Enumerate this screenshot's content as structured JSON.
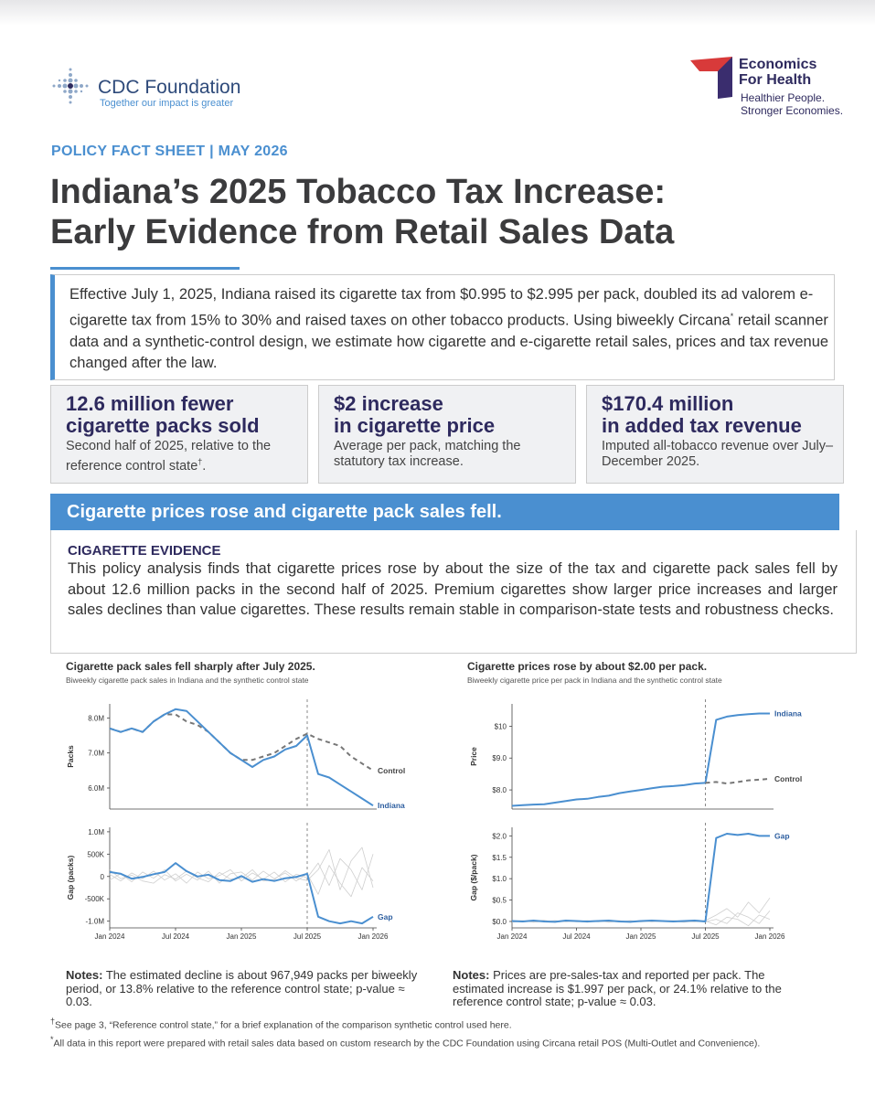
{
  "header": {
    "org_left": "CDC Foundation",
    "tagline_left": "Together our impact is greater",
    "org_right": [
      "Economics",
      "For Health"
    ],
    "tagline_right": [
      "Healthier People.",
      "Stronger Economies."
    ]
  },
  "kicker": "POLICY FACT SHEET | MAY 2026",
  "title": [
    "Indiana’s 2025 Tobacco Tax Increase:",
    "Early Evidence from Retail Sales Data"
  ],
  "intro": {
    "text_1": "Effective July 1, 2025, Indiana raised its cigarette tax from $0.995 to $2.995 per pack, doubled its ad valorem e-cigarette tax from 15% to 30% and raised taxes on other tobacco products. Using biweekly Circana",
    "mark": "*",
    "text_2": " retail scanner data and a synthetic-control design, we estimate how cigarette and e-cigarette retail sales, prices and tax revenue changed after the law."
  },
  "stats": [
    {
      "headline": [
        "12.6 million fewer",
        "cigarette packs sold"
      ],
      "detail": "Second half of 2025, relative to the reference control state",
      "mark": "†",
      "end": "."
    },
    {
      "headline": [
        "$2 increase",
        "in cigarette price"
      ],
      "detail": "Average per pack, matching the statutory tax increase.",
      "mark": null,
      "end": null
    },
    {
      "headline": [
        "$170.4 million",
        "in added tax revenue"
      ],
      "detail": "Imputed all-tobacco revenue over July–December 2025.",
      "mark": null,
      "end": null
    }
  ],
  "section": {
    "banner": "Cigarette prices rose and cigarette pack sales fell.",
    "heading": "CIGARETTE EVIDENCE",
    "body": "This policy analysis finds that cigarette prices rose by about the size of the tax and cigarette pack sales fell by about 12.6 million packs in the second half of 2025. Premium cigarettes show larger price increases and larger sales declines than value cigarettes. These results remain stable in comparison-state tests and robustness checks."
  },
  "chart_data": [
    {
      "type": "line",
      "title": "Cigarette pack sales fell sharply after July 2025.",
      "subtitle": "Biweekly cigarette pack sales in Indiana and the synthetic control state",
      "categories": [
        "Jan 2024",
        null,
        null,
        null,
        null,
        null,
        "Jul 2024",
        null,
        null,
        null,
        null,
        null,
        "Jan 2025",
        null,
        null,
        null,
        null,
        null,
        "Jul 2025",
        null,
        null,
        null,
        null,
        null,
        "Jan 2026"
      ],
      "vline": "Jul 2025",
      "grid": false,
      "panels": [
        {
          "ylabel": "Packs",
          "ylim": [
            5400000,
            8400000
          ],
          "yticks": [
            {
              "value": 6000000,
              "label": "6.0M"
            },
            {
              "value": 7000000,
              "label": "7.0M"
            },
            {
              "value": 8000000,
              "label": "8.0M"
            }
          ],
          "series": [
            {
              "name": "Control",
              "color": "#777777",
              "dash": true,
              "values": [
                7700000,
                7600000,
                7700000,
                7600000,
                7900000,
                8100000,
                8100000,
                7900000,
                7800000,
                7600000,
                7300000,
                7000000,
                6800000,
                6800000,
                6900000,
                7000000,
                7200000,
                7400000,
                7550000,
                7400000,
                7300000,
                7200000,
                6900000,
                6700000,
                6500000
              ]
            },
            {
              "name": "Indiana",
              "color": "#4a8fd0",
              "dash": false,
              "values": [
                7700000,
                7600000,
                7700000,
                7600000,
                7900000,
                8100000,
                8250000,
                8200000,
                7900000,
                7600000,
                7300000,
                7000000,
                6800000,
                6600000,
                6800000,
                6900000,
                7100000,
                7200000,
                7500000,
                6400000,
                6300000,
                6100000,
                5900000,
                5700000,
                5500000
              ]
            }
          ]
        },
        {
          "ylabel": "Gap (packs)",
          "ylim": [
            -1150000,
            1100000
          ],
          "yticks": [
            {
              "value": -1000000,
              "label": "-1.0M"
            },
            {
              "value": -500000,
              "label": "-500K"
            },
            0,
            {
              "value": 500000,
              "label": "500K"
            },
            {
              "value": 1000000,
              "label": "1.0M"
            }
          ],
          "series": [
            {
              "color": "#cfcfcf",
              "dash": false,
              "values": [
                50000,
                -100000,
                80000,
                -50000,
                120000,
                -80000,
                60000,
                -150000,
                100000,
                -50000,
                20000,
                150000,
                -100000,
                80000,
                -60000,
                100000,
                -120000,
                50000,
                -30000,
                300000,
                -200000,
                400000,
                150000,
                -300000,
                500000
              ]
            },
            {
              "color": "#cfcfcf",
              "dash": false,
              "values": [
                -80000,
                60000,
                -120000,
                100000,
                -40000,
                150000,
                -100000,
                50000,
                -80000,
                120000,
                -150000,
                60000,
                100000,
                -80000,
                120000,
                -50000,
                80000,
                -100000,
                60000,
                -400000,
                250000,
                -150000,
                -450000,
                200000,
                -100000
              ]
            },
            {
              "color": "#cfcfcf",
              "dash": false,
              "values": [
                150000,
                -50000,
                30000,
                -100000,
                -150000,
                40000,
                -60000,
                120000,
                -30000,
                -120000,
                90000,
                -60000,
                -40000,
                150000,
                -100000,
                -70000,
                130000,
                -40000,
                -90000,
                150000,
                600000,
                -300000,
                350000,
                650000,
                -250000
              ]
            },
            {
              "name": "Gap",
              "color": "#4a8fd0",
              "dash": false,
              "values": [
                100000,
                60000,
                -50000,
                -10000,
                50000,
                100000,
                300000,
                120000,
                0,
                40000,
                -80000,
                -100000,
                10000,
                -120000,
                -60000,
                -100000,
                -40000,
                -10000,
                60000,
                -900000,
                -1000000,
                -1050000,
                -1000000,
                -1050000,
                -900000
              ]
            }
          ]
        }
      ]
    },
    {
      "type": "line",
      "title": "Cigarette prices rose by about $2.00 per pack.",
      "subtitle": "Biweekly cigarette price per pack in Indiana and the synthetic control state",
      "categories": [
        "Jan 2024",
        null,
        null,
        null,
        null,
        null,
        "Jul 2024",
        null,
        null,
        null,
        null,
        null,
        "Jan 2025",
        null,
        null,
        null,
        null,
        null,
        "Jul 2025",
        null,
        null,
        null,
        null,
        null,
        "Jan 2026"
      ],
      "vline": "Jul 2025",
      "grid": false,
      "panels": [
        {
          "ylabel": "Price",
          "ylim": [
            7.4,
            10.7
          ],
          "yticks": [
            {
              "value": 8,
              "label": "$8.0"
            },
            {
              "value": 9,
              "label": "$9.0"
            },
            {
              "value": 10,
              "label": "$10"
            }
          ],
          "series": [
            {
              "name": "Indiana",
              "color": "#4a8fd0",
              "dash": false,
              "values": [
                7.5,
                7.52,
                7.54,
                7.55,
                7.6,
                7.65,
                7.7,
                7.72,
                7.78,
                7.82,
                7.9,
                7.95,
                8.0,
                8.05,
                8.1,
                8.12,
                8.15,
                8.2,
                8.22,
                10.2,
                10.3,
                10.35,
                10.38,
                10.4,
                10.4
              ]
            },
            {
              "name": "Control",
              "color": "#777777",
              "dash": true,
              "values": [
                null,
                null,
                null,
                null,
                null,
                null,
                null,
                null,
                null,
                null,
                null,
                null,
                null,
                null,
                null,
                null,
                null,
                null,
                8.22,
                8.25,
                8.2,
                8.25,
                8.3,
                8.32,
                8.35
              ]
            }
          ]
        },
        {
          "ylabel": "Gap ($/pack)",
          "ylim": [
            -0.15,
            2.2
          ],
          "yticks": [
            {
              "value": 0,
              "label": "$0.0"
            },
            {
              "value": 0.5,
              "label": "$0.5"
            },
            {
              "value": 1,
              "label": "$1.0"
            },
            {
              "value": 1.5,
              "label": "$1.5"
            },
            {
              "value": 2,
              "label": "$2.0"
            }
          ],
          "series": [
            {
              "color": "#cfcfcf",
              "dash": false,
              "values": [
                0.02,
                -0.01,
                0.01,
                0.03,
                -0.02,
                0.01,
                0,
                0.02,
                -0.01,
                0.01,
                0.02,
                -0.02,
                0.01,
                0,
                0.02,
                -0.01,
                0.01,
                0,
                0.02,
                0.15,
                0.3,
                0.1,
                0.45,
                0.2,
                0.55
              ]
            },
            {
              "color": "#cfcfcf",
              "dash": false,
              "values": [
                -0.02,
                0.01,
                -0.01,
                0,
                0.02,
                -0.01,
                0.01,
                -0.02,
                0.01,
                0,
                -0.01,
                0.02,
                -0.01,
                0.01,
                0,
                0.01,
                -0.02,
                0.01,
                -0.01,
                0.05,
                -0.05,
                0.2,
                0.1,
                -0.05,
                0.25
              ]
            },
            {
              "color": "#cfcfcf",
              "dash": false,
              "values": [
                0.01,
                0.02,
                -0.02,
                0.01,
                -0.01,
                0.02,
                -0.01,
                0.01,
                0.02,
                -0.02,
                0.01,
                0,
                0.02,
                -0.01,
                0.01,
                0.02,
                0,
                -0.01,
                0.01,
                -0.08,
                0.1,
                0.05,
                -0.1,
                0.15,
                0.05
              ]
            },
            {
              "name": "Gap",
              "color": "#4a8fd0",
              "dash": false,
              "values": [
                0.01,
                0,
                0.02,
                0,
                -0.01,
                0.02,
                0.01,
                0,
                0.01,
                0.02,
                0,
                -0.01,
                0.01,
                0.02,
                0.01,
                0,
                0.01,
                0.02,
                0,
                1.95,
                2.05,
                2.02,
                2.05,
                2.0,
                2.0
              ]
            }
          ]
        }
      ]
    }
  ],
  "notes": [
    {
      "label": "Notes:",
      "text": " The estimated decline is about 967,949 packs per biweekly period, or 13.8% relative to the reference control state; p-value ≈ 0.03."
    },
    {
      "label": "Notes:",
      "text": " Prices are pre-sales-tax and reported per pack. The estimated increase is $1.997 per pack, or 24.1% relative to the reference control state; p-value ≈ 0.03."
    }
  ],
  "footnotes": [
    {
      "mark": "†",
      "text": "See page 3, “Reference control state,” for a brief explanation of the comparison synthetic control used here."
    },
    {
      "mark": "*",
      "text": "All data in this report were prepared with retail sales data based on custom research by the CDC Foundation using Circana retail POS (Multi-Outlet and Convenience)."
    }
  ]
}
